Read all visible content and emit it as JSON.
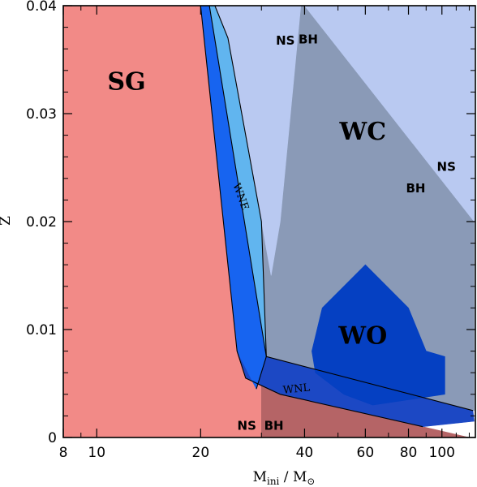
{
  "chart_data": {
    "type": "area",
    "title": "",
    "xlabel": "M_ini / M_⊙",
    "xlabel_parts": {
      "main": "M",
      "sub": "ini",
      "sep": " / ",
      "main2": "M",
      "sub2": "⊙"
    },
    "ylabel": "Z",
    "x_scale": "log",
    "xlim": [
      8,
      125
    ],
    "ylim": [
      0,
      0.04
    ],
    "x_ticks": [
      {
        "value": 8,
        "label": "8"
      },
      {
        "value": 10,
        "label": "10"
      },
      {
        "value": 20,
        "label": "20"
      },
      {
        "value": 40,
        "label": "40"
      },
      {
        "value": 60,
        "label": "60"
      },
      {
        "value": 80,
        "label": "80"
      },
      {
        "value": 100,
        "label": "100"
      }
    ],
    "y_ticks": [
      {
        "value": 0,
        "label": "0"
      },
      {
        "value": 0.01,
        "label": "0.01"
      },
      {
        "value": 0.02,
        "label": "0.02"
      },
      {
        "value": 0.03,
        "label": "0.03"
      },
      {
        "value": 0.04,
        "label": "0.04"
      }
    ],
    "regions": [
      {
        "id": "sg",
        "label": "SG",
        "color": "#f28a87",
        "points": [
          [
            8,
            0
          ],
          [
            8,
            0.04
          ],
          [
            20,
            0.04
          ],
          [
            25.5,
            0.008
          ],
          [
            27,
            0.0055
          ],
          [
            30,
            0.0048
          ],
          [
            30,
            0
          ]
        ]
      },
      {
        "id": "sg-bh",
        "label": "",
        "color": "#b56466",
        "points": [
          [
            30,
            0
          ],
          [
            30,
            0.0048
          ],
          [
            34,
            0.004
          ],
          [
            88,
            0.001
          ],
          [
            120,
            0
          ]
        ]
      },
      {
        "id": "wnl",
        "label": "WNL",
        "color": "#1c48c4",
        "points": [
          [
            27,
            0.0055
          ],
          [
            25.5,
            0.008
          ],
          [
            29,
            0.0045
          ],
          [
            31,
            0.0075
          ],
          [
            123,
            0.0025
          ],
          [
            124,
            0.0015
          ],
          [
            88,
            0.001
          ],
          [
            34,
            0.004
          ],
          [
            30,
            0.0048
          ]
        ]
      },
      {
        "id": "wne-dark",
        "label": "",
        "color": "#1764f0",
        "points": [
          [
            20,
            0.04
          ],
          [
            21.2,
            0.04
          ],
          [
            31,
            0.0075
          ],
          [
            29,
            0.0045
          ],
          [
            25.5,
            0.008
          ]
        ]
      },
      {
        "id": "wne",
        "label": "WNE",
        "color": "#61b5ef",
        "points": [
          [
            21.2,
            0.04
          ],
          [
            22,
            0.04
          ],
          [
            24,
            0.037
          ],
          [
            30,
            0.02
          ],
          [
            31,
            0.0075
          ]
        ]
      },
      {
        "id": "wc",
        "label": "WC",
        "color": "#8a9ab7",
        "points": [
          [
            31,
            0.0075
          ],
          [
            30,
            0.02
          ],
          [
            32,
            0.015
          ],
          [
            39,
            0.04
          ],
          [
            40,
            0.04
          ],
          [
            124,
            0.02
          ],
          [
            124,
            0.0025
          ]
        ]
      },
      {
        "id": "ns-upper",
        "label": "",
        "color": "#b9c9f1",
        "points": [
          [
            22,
            0.04
          ],
          [
            39,
            0.04
          ],
          [
            34,
            0.02
          ],
          [
            32,
            0.015
          ],
          [
            30,
            0.02
          ],
          [
            24,
            0.037
          ]
        ]
      },
      {
        "id": "ns-right",
        "label": "",
        "color": "#b9c9f1",
        "points": [
          [
            40,
            0.04
          ],
          [
            124,
            0.04
          ],
          [
            124,
            0.02
          ]
        ]
      },
      {
        "id": "wo",
        "label": "WO",
        "color": "#0540c2",
        "points": [
          [
            42,
            0.008
          ],
          [
            45,
            0.012
          ],
          [
            60,
            0.016
          ],
          [
            80,
            0.012
          ],
          [
            90,
            0.008
          ],
          [
            102,
            0.0075
          ],
          [
            102,
            0.004
          ],
          [
            63,
            0.003
          ],
          [
            52,
            0.004
          ],
          [
            43,
            0.006
          ]
        ]
      }
    ],
    "annotations": [
      {
        "id": "sg",
        "text": "SG",
        "x": 12.2,
        "y": 0.0322,
        "style": "big"
      },
      {
        "id": "wc",
        "text": "WC",
        "x": 59,
        "y": 0.0276,
        "style": "big"
      },
      {
        "id": "wo",
        "text": "WO",
        "x": 59,
        "y": 0.0087,
        "style": "big"
      },
      {
        "id": "wne",
        "text": "WNE",
        "x": 25.6,
        "y": 0.0222,
        "style": "small",
        "rotate": 70
      },
      {
        "id": "wnl",
        "text": "WNL",
        "x": 38,
        "y": 0.0042,
        "style": "small",
        "rotate": -6
      },
      {
        "id": "ns-top",
        "text": "NS",
        "x": 35.2,
        "y": 0.0364,
        "style": "remnant"
      },
      {
        "id": "bh-top",
        "text": "BH",
        "x": 41,
        "y": 0.0365,
        "style": "remnant"
      },
      {
        "id": "ns-right",
        "text": "NS",
        "x": 103,
        "y": 0.0247,
        "style": "remnant"
      },
      {
        "id": "bh-right",
        "text": "BH",
        "x": 84,
        "y": 0.0227,
        "style": "remnant"
      },
      {
        "id": "ns-bottom",
        "text": "NS",
        "x": 27.2,
        "y": 0.0007,
        "style": "remnant"
      },
      {
        "id": "bh-bottom",
        "text": "BH",
        "x": 32.6,
        "y": 0.0007,
        "style": "remnant"
      }
    ],
    "grid": false,
    "legend": "none"
  }
}
